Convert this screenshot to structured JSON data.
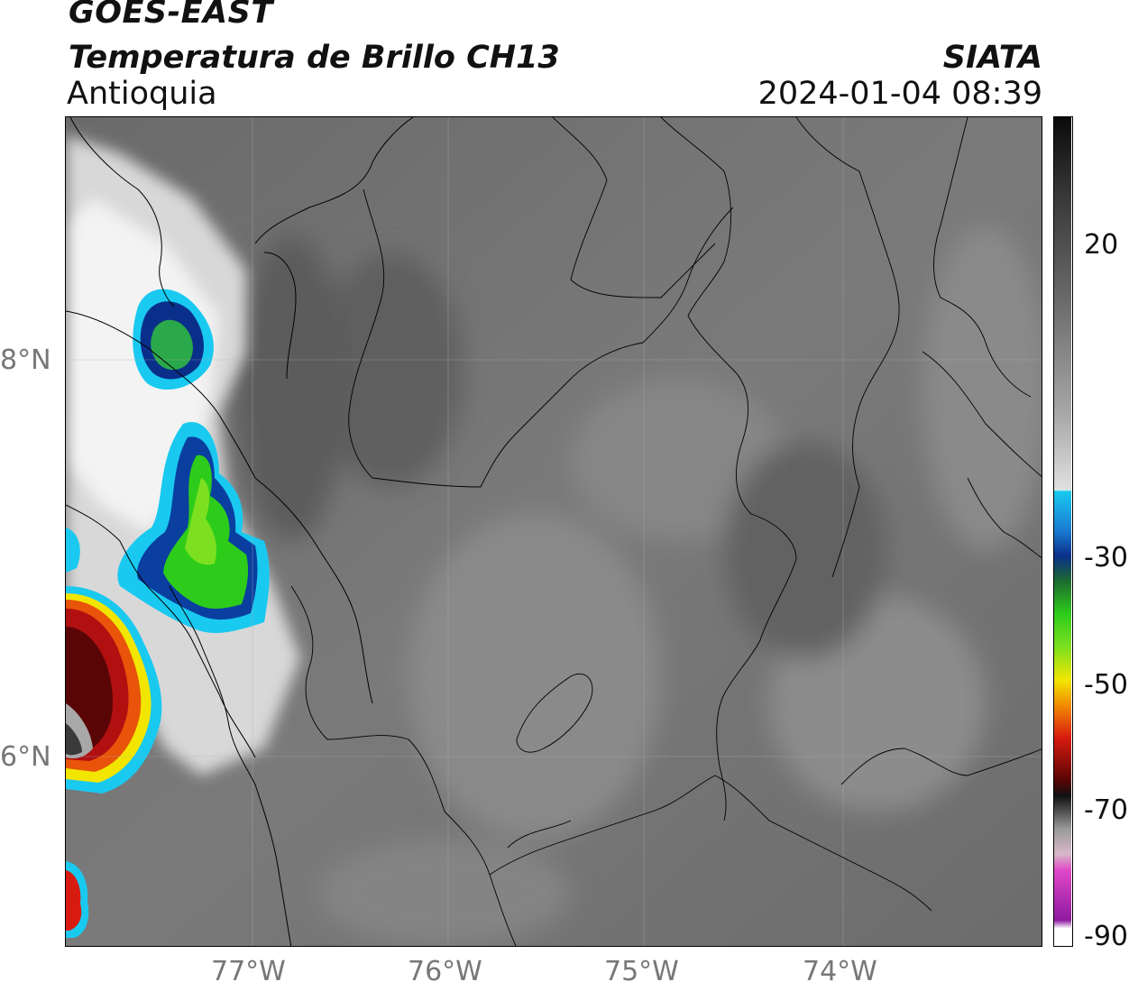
{
  "header": {
    "satellite": "GOES-EAST",
    "product": "Temperatura de Brillo CH13",
    "region": "Antioquia",
    "credit": "SIATA",
    "datetime": "2024-01-04 08:39"
  },
  "map": {
    "lat_labels": [
      "8°N",
      "6°N"
    ],
    "lon_labels": [
      "77°W",
      "76°W",
      "75°W",
      "74°W"
    ]
  },
  "colorbar": {
    "ticks": [
      "20",
      "-30",
      "-50",
      "-70",
      "-90"
    ],
    "colors": {
      "warm_gray": "#5a5a5a",
      "cold_white": "#f4f4f4",
      "cyan": "#19c9f0",
      "blue": "#0a2f8a",
      "green": "#2ecc1a",
      "yellow": "#f2e600",
      "red": "#d81b10",
      "dark_red": "#5a0505",
      "pink": "#e048c8",
      "purple": "#8e1aa0"
    }
  }
}
